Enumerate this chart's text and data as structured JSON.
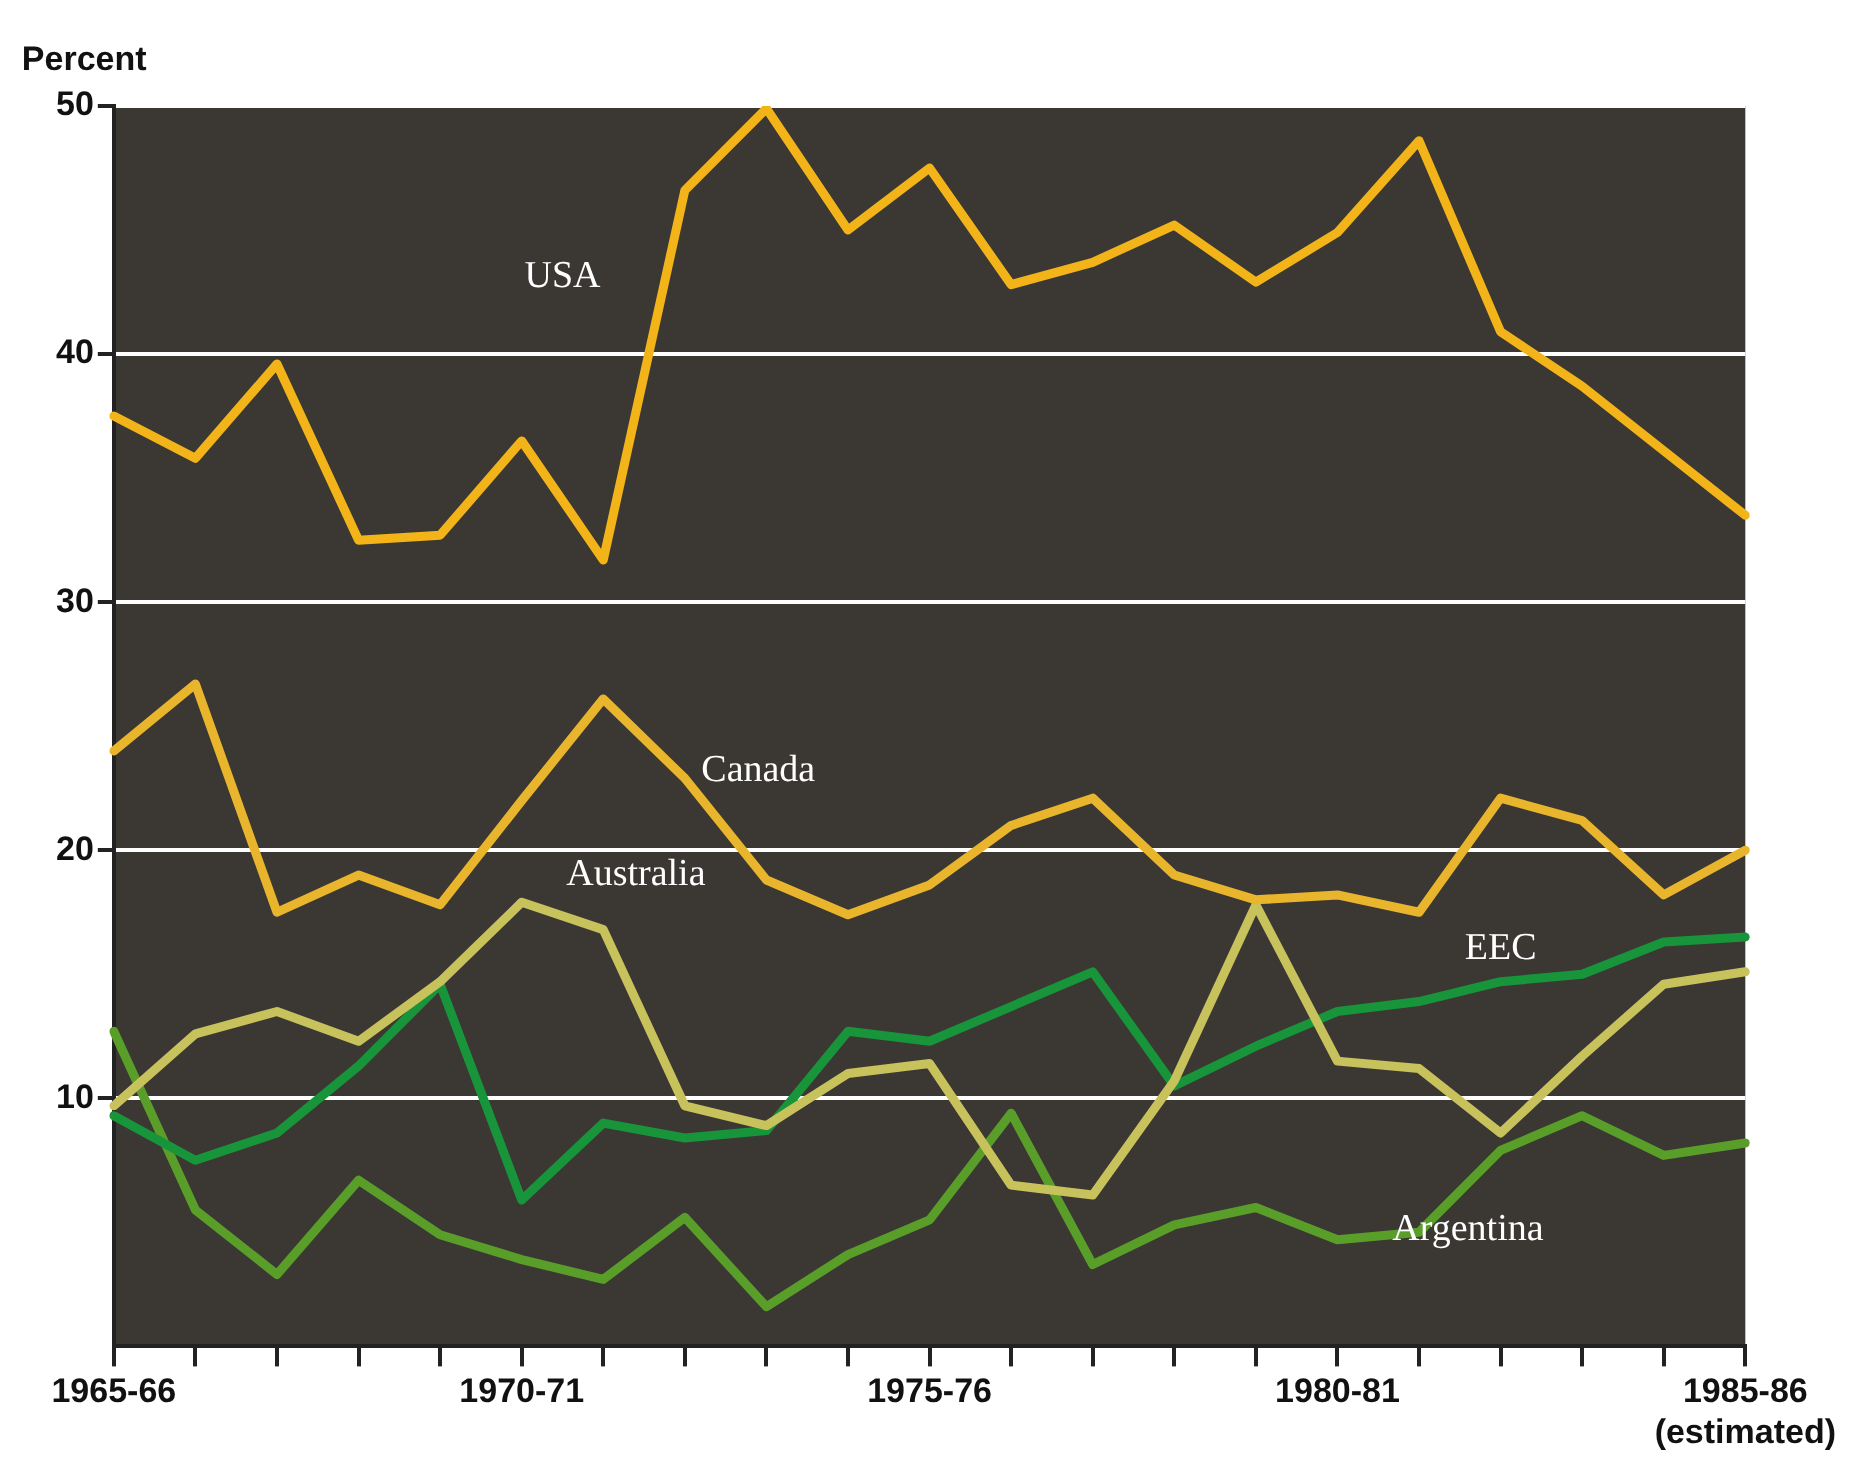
{
  "chart_data": {
    "type": "line",
    "ylabel": "Percent",
    "categories": [
      "1965-66",
      null,
      null,
      null,
      null,
      "1970-71",
      null,
      null,
      null,
      null,
      "1975-76",
      null,
      null,
      null,
      null,
      "1980-81",
      null,
      null,
      null,
      null,
      "1985-86\n(estimated)"
    ],
    "series": [
      {
        "name": "USA",
        "color": "#f2b418",
        "values": [
          37.5,
          35.8,
          39.6,
          32.5,
          32.7,
          36.5,
          31.7,
          46.6,
          49.9,
          45.0,
          47.5,
          42.8,
          43.7,
          45.2,
          42.9,
          44.9,
          48.6,
          40.9,
          38.7,
          36.1,
          33.5
        ]
      },
      {
        "name": "Canada",
        "color": "#e9b52c",
        "values": [
          24.0,
          26.7,
          17.5,
          19.0,
          17.8,
          22.0,
          26.1,
          22.9,
          18.8,
          17.4,
          18.6,
          21.0,
          22.1,
          19.0,
          18.0,
          18.2,
          17.5,
          22.1,
          21.2,
          18.2,
          20.0
        ]
      },
      {
        "name": "Australia",
        "color": "#c8c25c",
        "values": [
          9.7,
          12.6,
          13.5,
          12.3,
          14.7,
          17.9,
          16.8,
          9.7,
          8.9,
          11.0,
          11.4,
          6.5,
          6.1,
          10.7,
          17.8,
          11.5,
          11.2,
          8.6,
          11.7,
          14.6,
          15.1
        ]
      },
      {
        "name": "EEC",
        "color": "#18943a",
        "values": [
          9.3,
          7.5,
          8.6,
          11.3,
          14.6,
          5.9,
          9.0,
          8.4,
          8.7,
          12.7,
          12.3,
          13.7,
          15.1,
          10.5,
          12.1,
          13.5,
          13.9,
          14.7,
          15.0,
          16.3,
          16.5
        ]
      },
      {
        "name": "Argentina",
        "color": "#5a9e2a",
        "values": [
          12.7,
          5.5,
          2.9,
          6.7,
          4.5,
          3.5,
          2.7,
          5.2,
          1.6,
          3.7,
          5.1,
          9.4,
          3.3,
          4.9,
          5.6,
          4.3,
          4.6,
          7.9,
          9.3,
          7.7,
          8.2
        ]
      }
    ],
    "ylim": [
      0,
      50
    ],
    "yticks": [
      10,
      20,
      30,
      40,
      50
    ],
    "grid": "y",
    "legend": false,
    "marker": "none",
    "line_style": "solid"
  }
}
